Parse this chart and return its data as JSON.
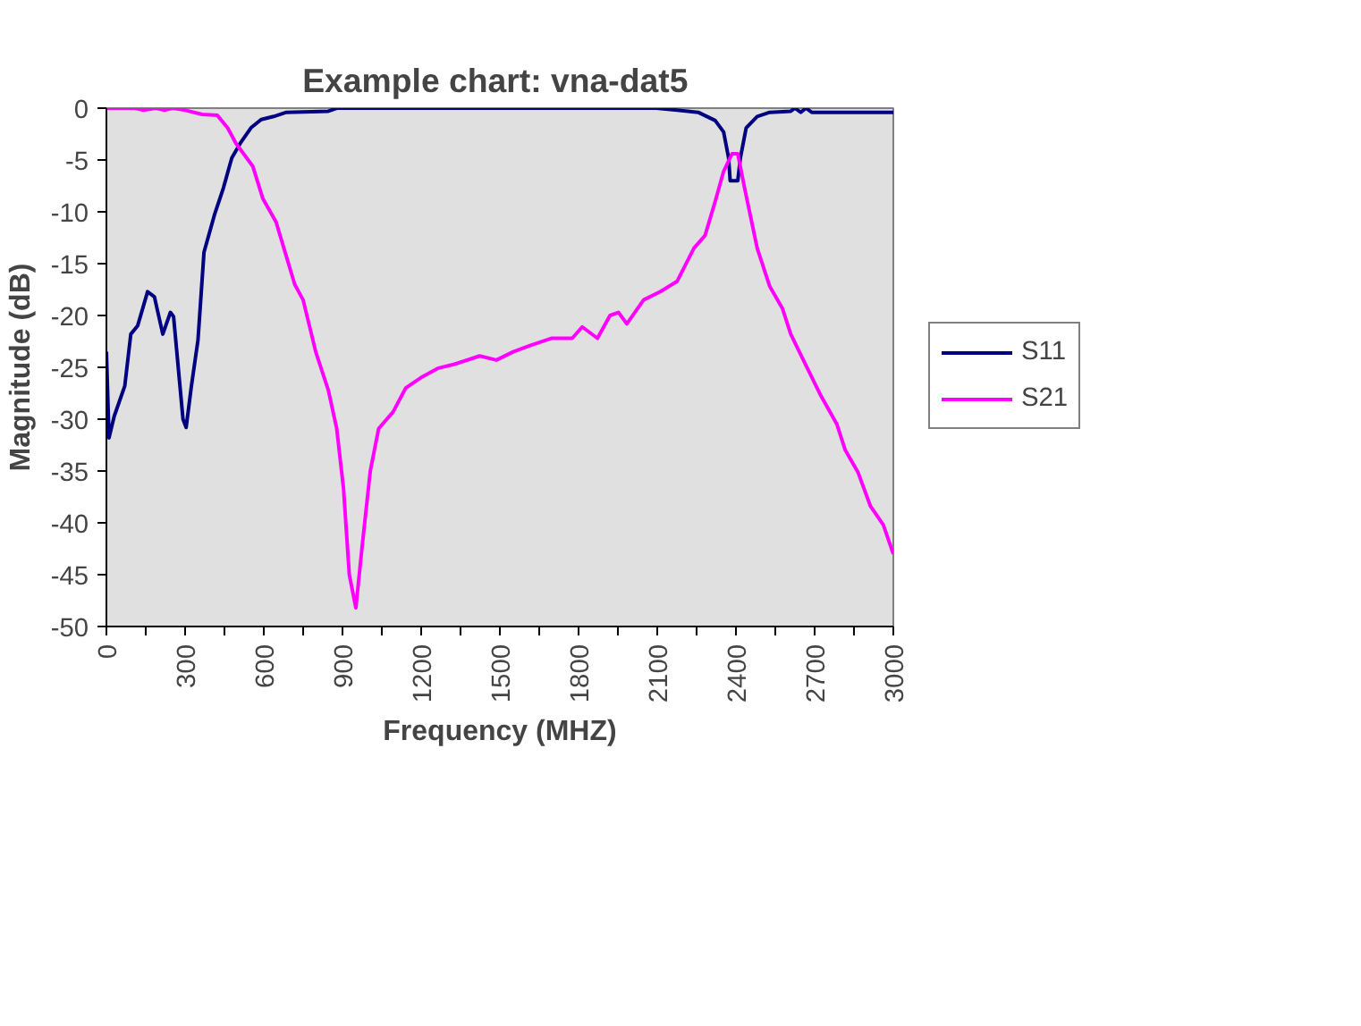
{
  "chart_data": {
    "type": "line",
    "title": "Example chart:  vna-dat5",
    "xlabel": "Frequency (MHZ)",
    "ylabel": "Magnitude (dB)",
    "xlim": [
      0,
      3000
    ],
    "ylim": [
      -50,
      0
    ],
    "xticks": [
      0,
      {
        "value": 150,
        "label": null
      },
      300,
      {
        "value": 450,
        "label": null
      },
      600,
      {
        "value": 750,
        "label": null
      },
      900,
      {
        "value": 1050,
        "label": null
      },
      1200,
      {
        "value": 1350,
        "label": null
      },
      1500,
      {
        "value": 1650,
        "label": null
      },
      1800,
      {
        "value": 1950,
        "label": null
      },
      2100,
      {
        "value": 2250,
        "label": null
      },
      2400,
      {
        "value": 2550,
        "label": null
      },
      2700,
      {
        "value": 2850,
        "label": null
      },
      3000
    ],
    "yticks": [
      -50,
      -45,
      -40,
      -35,
      -30,
      -25,
      -20,
      -15,
      -10,
      -5,
      0
    ],
    "grid": false,
    "legend": "right",
    "marker": "none",
    "line_style": "solid",
    "series": [
      {
        "name": "S11",
        "color": "#000080",
        "x": [
          0,
          10,
          30,
          70,
          93,
          119,
          157,
          183,
          215,
          244,
          256,
          292,
          304,
          324,
          349,
          372,
          413,
          446,
          478,
          510,
          551,
          590,
          638,
          686,
          846,
          878,
          2096,
          2176,
          2256,
          2321,
          2353,
          2372,
          2378,
          2407,
          2417,
          2439,
          2481,
          2529,
          2609,
          2625,
          2647,
          2667,
          2689,
          3000
        ],
        "values": [
          -23.5,
          -31.8,
          -29.7,
          -26.8,
          -21.8,
          -21,
          -17.7,
          -18.2,
          -21.8,
          -19.7,
          -20.1,
          -30,
          -30.8,
          -26.8,
          -22.4,
          -13.9,
          -10.2,
          -7.7,
          -4.8,
          -3.4,
          -1.9,
          -1.1,
          -0.8,
          -0.4,
          -0.3,
          0,
          0,
          -0.2,
          -0.4,
          -1.2,
          -2.3,
          -4.8,
          -7,
          -7,
          -4.8,
          -1.9,
          -0.8,
          -0.4,
          -0.3,
          0,
          -0.4,
          0,
          -0.4,
          -0.4
        ]
      },
      {
        "name": "S21",
        "color": "#ff00ff",
        "x": [
          0,
          109,
          141,
          189,
          221,
          253,
          301,
          365,
          423,
          462,
          494,
          558,
          596,
          647,
          686,
          718,
          750,
          798,
          846,
          878,
          904,
          926,
          951,
          974,
          1006,
          1038,
          1093,
          1141,
          1199,
          1263,
          1327,
          1423,
          1487,
          1551,
          1615,
          1696,
          1776,
          1814,
          1872,
          1920,
          1952,
          1984,
          2048,
          2112,
          2176,
          2240,
          2282,
          2321,
          2353,
          2385,
          2407,
          2433,
          2481,
          2529,
          2577,
          2609,
          2657,
          2721,
          2785,
          2817,
          2865,
          2913,
          2962,
          3000
        ],
        "values": [
          0,
          0,
          -0.2,
          0,
          -0.2,
          0,
          -0.2,
          -0.6,
          -0.7,
          -1.9,
          -3.4,
          -5.6,
          -8.7,
          -11,
          -14.3,
          -17,
          -18.5,
          -23.5,
          -27.2,
          -30.9,
          -36.7,
          -45,
          -48.2,
          -42.5,
          -35,
          -30.9,
          -29.3,
          -27,
          -26,
          -25.1,
          -24.7,
          -23.9,
          -24.3,
          -23.5,
          -22.9,
          -22.2,
          -22.2,
          -21.1,
          -22.2,
          -20,
          -19.7,
          -20.8,
          -18.5,
          -17.7,
          -16.7,
          -13.5,
          -12.3,
          -9,
          -6.1,
          -4.4,
          -4.4,
          -7.7,
          -13.5,
          -17.2,
          -19.3,
          -21.8,
          -24.3,
          -27.6,
          -30.5,
          -33,
          -35.1,
          -38.4,
          -40.2,
          -43
        ]
      }
    ]
  }
}
